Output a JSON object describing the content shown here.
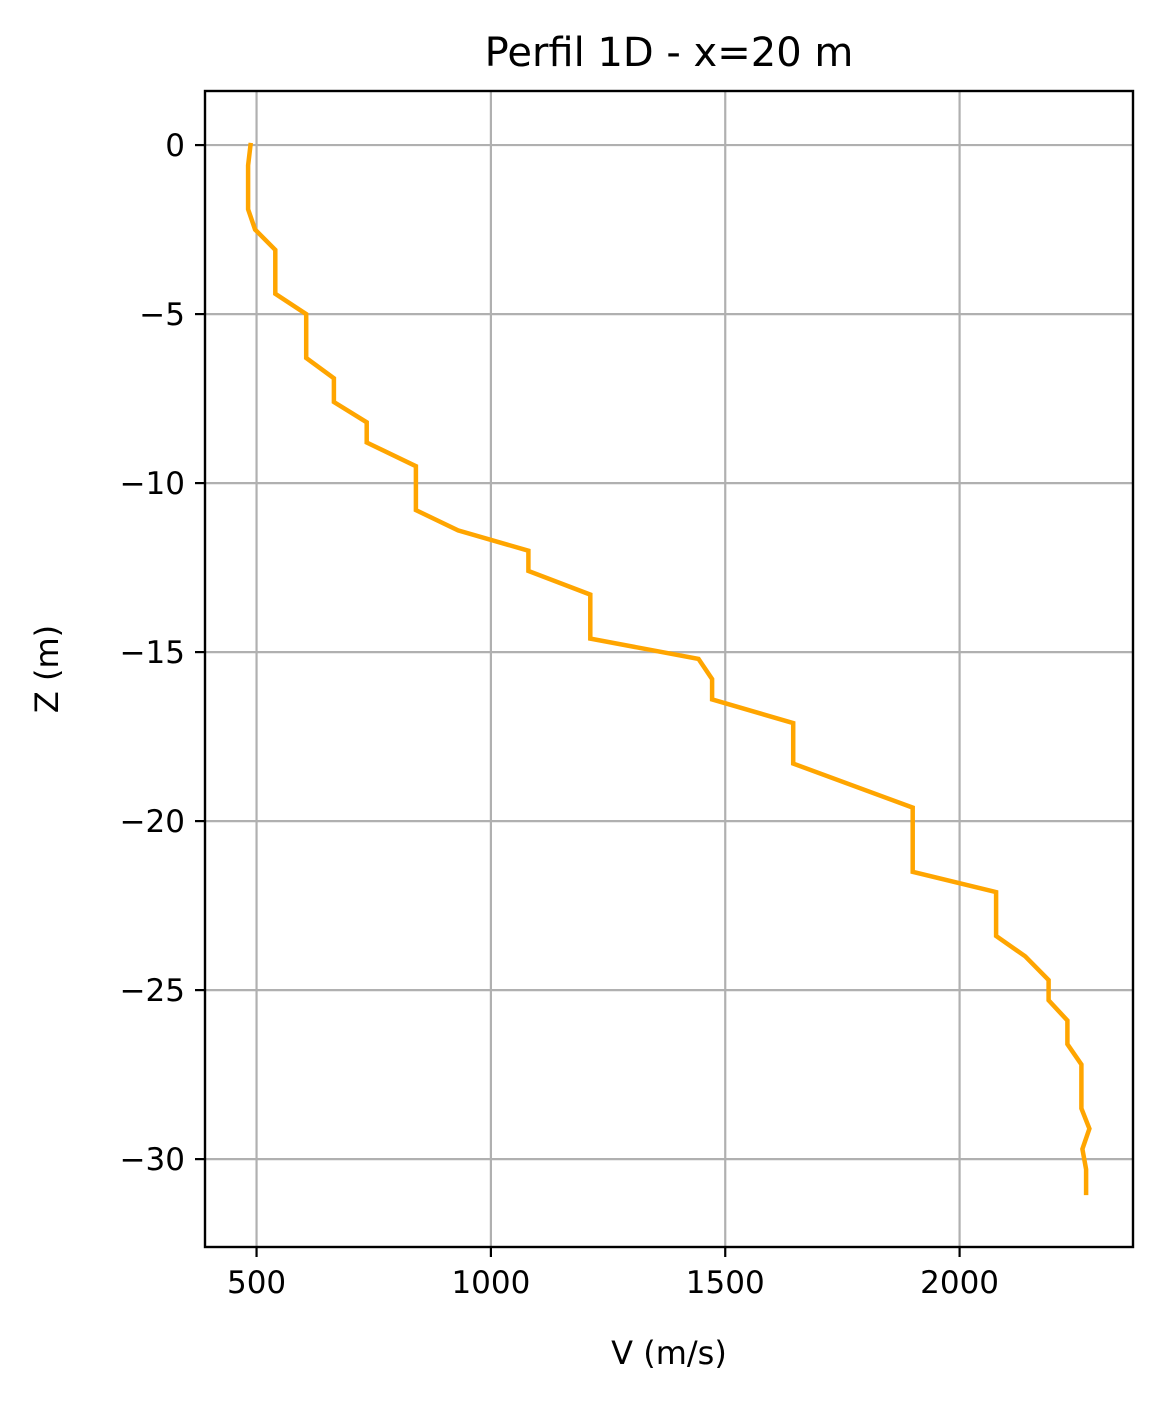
{
  "chart_data": {
    "type": "line",
    "title": "Perfil 1D - x=20 m",
    "xlabel": "V (m/s)",
    "ylabel": "Z (m)",
    "xlim": [
      390,
      2370
    ],
    "ylim": [
      -32.6,
      1.6
    ],
    "xticks": [
      500,
      1000,
      1500,
      2000
    ],
    "yticks": [
      0,
      -5,
      -10,
      -15,
      -20,
      -25,
      -30
    ],
    "xtick_labels": [
      "500",
      "1000",
      "1500",
      "2000"
    ],
    "ytick_labels": [
      "0",
      "−5",
      "−10",
      "−15",
      "−20",
      "−25",
      "−30"
    ],
    "grid": true,
    "series": [
      {
        "color": "#ffa500",
        "points": [
          {
            "v": 487,
            "z": 0.0
          },
          {
            "v": 482,
            "z": -0.6
          },
          {
            "v": 482,
            "z": -1.9
          },
          {
            "v": 497,
            "z": -2.5
          },
          {
            "v": 540,
            "z": -3.1
          },
          {
            "v": 540,
            "z": -4.4
          },
          {
            "v": 606,
            "z": -5.0
          },
          {
            "v": 606,
            "z": -6.3
          },
          {
            "v": 665,
            "z": -6.9
          },
          {
            "v": 665,
            "z": -7.6
          },
          {
            "v": 735,
            "z": -8.2
          },
          {
            "v": 735,
            "z": -8.8
          },
          {
            "v": 840,
            "z": -9.5
          },
          {
            "v": 840,
            "z": -10.8
          },
          {
            "v": 930,
            "z": -11.4
          },
          {
            "v": 1080,
            "z": -12.0
          },
          {
            "v": 1080,
            "z": -12.6
          },
          {
            "v": 1212,
            "z": -13.3
          },
          {
            "v": 1212,
            "z": -14.6
          },
          {
            "v": 1443,
            "z": -15.2
          },
          {
            "v": 1472,
            "z": -15.8
          },
          {
            "v": 1472,
            "z": -16.4
          },
          {
            "v": 1645,
            "z": -17.1
          },
          {
            "v": 1645,
            "z": -18.3
          },
          {
            "v": 1900,
            "z": -19.6
          },
          {
            "v": 1900,
            "z": -21.5
          },
          {
            "v": 2078,
            "z": -22.1
          },
          {
            "v": 2078,
            "z": -23.4
          },
          {
            "v": 2140,
            "z": -24.0
          },
          {
            "v": 2190,
            "z": -24.7
          },
          {
            "v": 2190,
            "z": -25.3
          },
          {
            "v": 2230,
            "z": -25.9
          },
          {
            "v": 2230,
            "z": -26.6
          },
          {
            "v": 2260,
            "z": -27.2
          },
          {
            "v": 2260,
            "z": -28.5
          },
          {
            "v": 2277,
            "z": -29.1
          },
          {
            "v": 2262,
            "z": -29.7
          },
          {
            "v": 2270,
            "z": -30.3
          },
          {
            "v": 2270,
            "z": -31.0
          }
        ]
      }
    ]
  },
  "colors": {
    "line": "#ffa500",
    "grid": "#b0b0b0",
    "axes": "#000000",
    "background": "#ffffff"
  }
}
